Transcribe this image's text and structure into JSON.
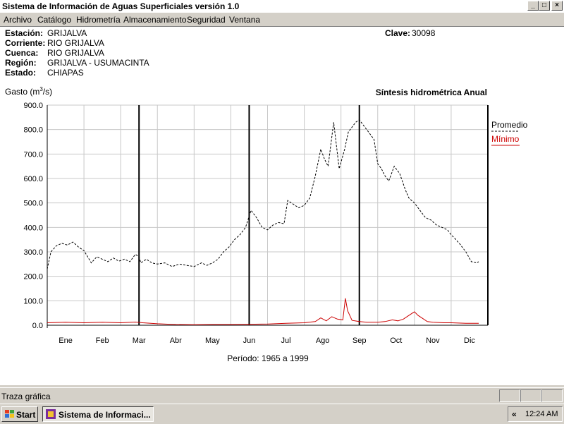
{
  "window": {
    "title": "Sistema de Información de Aguas Superficiales  versión 1.0",
    "controls": {
      "minimize": "_",
      "maximize": "□",
      "close": "×"
    }
  },
  "menu": [
    {
      "label": "Archivo",
      "access": "A"
    },
    {
      "label": "Catálogo",
      "access": "C"
    },
    {
      "label": "Hidrometría",
      "access": "H"
    },
    {
      "label": "Almacenamiento",
      "access": "A"
    },
    {
      "label": "Seguridad",
      "access": "S"
    },
    {
      "label": "Ventana",
      "access": "V"
    }
  ],
  "station": {
    "estacion_label": "Estación:",
    "estacion": "GRIJALVA",
    "corriente_label": "Corriente:",
    "corriente": "RIO GRIJALVA",
    "cuenca_label": "Cuenca:",
    "cuenca": "RIO GRIJALVA",
    "region_label": "Región:",
    "region": "GRIJALVA - USUMACINTA",
    "estado_label": "Estado:",
    "estado": "CHIAPAS",
    "clave_label": "Clave:",
    "clave": "30098"
  },
  "chart_data": {
    "type": "line",
    "title": "Síntesis hidrométrica   Anual",
    "ylabel": "Gasto (m³/s)",
    "ylabel_main": "Gasto (m",
    "ylabel_sup": "3",
    "ylabel_end": "/s)",
    "xlabel": "Período:  1965 a 1999",
    "ylim": [
      0,
      900
    ],
    "yticks": [
      "0.0",
      "100.0",
      "200.0",
      "300.0",
      "400.0",
      "500.0",
      "600.0",
      "700.0",
      "800.0",
      "900.0"
    ],
    "xticks": [
      "Ene",
      "Feb",
      "Mar",
      "Abr",
      "May",
      "Jun",
      "Jul",
      "Ago",
      "Sep",
      "Oct",
      "Nov",
      "Dic"
    ],
    "x_domain": [
      0,
      12
    ],
    "vertical_lines": [
      2.5,
      5.5,
      8.5
    ],
    "legend_position": "right",
    "series": [
      {
        "name": "Promedio",
        "color": "#000000",
        "style": "dashed",
        "points": [
          [
            0,
            230
          ],
          [
            0.1,
            300
          ],
          [
            0.25,
            325
          ],
          [
            0.4,
            335
          ],
          [
            0.55,
            328
          ],
          [
            0.7,
            340
          ],
          [
            0.85,
            320
          ],
          [
            1.0,
            305
          ],
          [
            1.1,
            280
          ],
          [
            1.2,
            255
          ],
          [
            1.35,
            280
          ],
          [
            1.5,
            270
          ],
          [
            1.65,
            260
          ],
          [
            1.8,
            275
          ],
          [
            1.95,
            262
          ],
          [
            2.1,
            270
          ],
          [
            2.25,
            260
          ],
          [
            2.4,
            290
          ],
          [
            2.5,
            280
          ],
          [
            2.55,
            255
          ],
          [
            2.7,
            270
          ],
          [
            2.85,
            255
          ],
          [
            3.0,
            250
          ],
          [
            3.2,
            255
          ],
          [
            3.4,
            240
          ],
          [
            3.6,
            250
          ],
          [
            3.8,
            245
          ],
          [
            4.0,
            240
          ],
          [
            4.2,
            255
          ],
          [
            4.35,
            245
          ],
          [
            4.5,
            255
          ],
          [
            4.65,
            270
          ],
          [
            4.8,
            300
          ],
          [
            4.95,
            320
          ],
          [
            5.1,
            350
          ],
          [
            5.25,
            370
          ],
          [
            5.4,
            400
          ],
          [
            5.55,
            470
          ],
          [
            5.7,
            440
          ],
          [
            5.85,
            400
          ],
          [
            6.0,
            390
          ],
          [
            6.15,
            410
          ],
          [
            6.3,
            420
          ],
          [
            6.45,
            415
          ],
          [
            6.55,
            510
          ],
          [
            6.7,
            495
          ],
          [
            6.85,
            480
          ],
          [
            7.0,
            490
          ],
          [
            7.15,
            520
          ],
          [
            7.3,
            610
          ],
          [
            7.45,
            720
          ],
          [
            7.55,
            680
          ],
          [
            7.65,
            650
          ],
          [
            7.8,
            830
          ],
          [
            7.95,
            640
          ],
          [
            8.1,
            720
          ],
          [
            8.2,
            790
          ],
          [
            8.3,
            810
          ],
          [
            8.4,
            830
          ],
          [
            8.5,
            840
          ],
          [
            8.6,
            820
          ],
          [
            8.75,
            790
          ],
          [
            8.9,
            760
          ],
          [
            9.0,
            660
          ],
          [
            9.1,
            640
          ],
          [
            9.2,
            610
          ],
          [
            9.3,
            590
          ],
          [
            9.45,
            650
          ],
          [
            9.6,
            620
          ],
          [
            9.75,
            555
          ],
          [
            9.85,
            520
          ],
          [
            10.0,
            500
          ],
          [
            10.15,
            470
          ],
          [
            10.3,
            440
          ],
          [
            10.45,
            430
          ],
          [
            10.6,
            410
          ],
          [
            10.75,
            400
          ],
          [
            10.9,
            390
          ],
          [
            11.0,
            370
          ],
          [
            11.1,
            355
          ],
          [
            11.25,
            330
          ],
          [
            11.4,
            300
          ],
          [
            11.55,
            260
          ],
          [
            11.7,
            255
          ],
          [
            11.75,
            260
          ]
        ]
      },
      {
        "name": "Mínimo",
        "color": "#cc0000",
        "style": "solid",
        "points": [
          [
            0,
            10
          ],
          [
            0.5,
            12
          ],
          [
            1.0,
            10
          ],
          [
            1.5,
            12
          ],
          [
            2.0,
            10
          ],
          [
            2.4,
            13
          ],
          [
            2.6,
            10
          ],
          [
            3.0,
            6
          ],
          [
            3.5,
            3
          ],
          [
            4.0,
            2
          ],
          [
            4.5,
            3
          ],
          [
            5.0,
            3
          ],
          [
            5.5,
            4
          ],
          [
            6.0,
            5
          ],
          [
            6.5,
            8
          ],
          [
            7.0,
            10
          ],
          [
            7.3,
            15
          ],
          [
            7.45,
            30
          ],
          [
            7.6,
            18
          ],
          [
            7.75,
            35
          ],
          [
            7.9,
            25
          ],
          [
            8.05,
            22
          ],
          [
            8.12,
            110
          ],
          [
            8.18,
            60
          ],
          [
            8.3,
            20
          ],
          [
            8.5,
            15
          ],
          [
            8.7,
            12
          ],
          [
            9.0,
            12
          ],
          [
            9.2,
            15
          ],
          [
            9.4,
            22
          ],
          [
            9.55,
            18
          ],
          [
            9.7,
            25
          ],
          [
            9.85,
            40
          ],
          [
            10.0,
            55
          ],
          [
            10.1,
            40
          ],
          [
            10.2,
            30
          ],
          [
            10.35,
            15
          ],
          [
            10.5,
            12
          ],
          [
            10.8,
            10
          ],
          [
            11.0,
            10
          ],
          [
            11.4,
            8
          ],
          [
            11.75,
            8
          ]
        ]
      }
    ]
  },
  "status": {
    "text": "Traza gráfica"
  },
  "taskbar": {
    "start_label": "Start",
    "task_label": "Sistema de Informaci...",
    "tray_chevron": "«",
    "clock": "12:24 AM"
  }
}
